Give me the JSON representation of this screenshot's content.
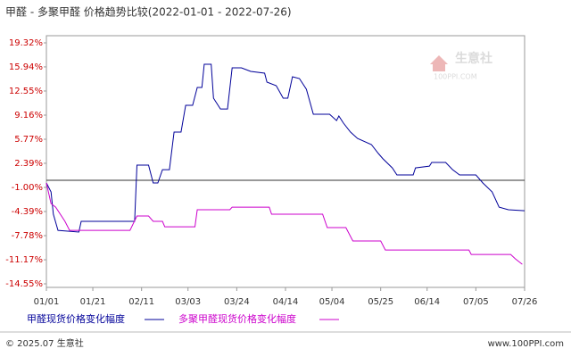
{
  "chart_data": {
    "type": "line",
    "title": "甲醛 - 多聚甲醛 价格趋势比较(2022-01-01 - 2022-07-26)",
    "xlim": [
      "01/01",
      "07/26"
    ],
    "xticks": [
      "01/01",
      "01/21",
      "02/11",
      "03/03",
      "03/24",
      "04/14",
      "05/04",
      "05/25",
      "06/14",
      "07/05",
      "07/26"
    ],
    "ylim": [
      -14.55,
      19.32
    ],
    "yticks": [
      {
        "value": 19.32,
        "label": "19.32%"
      },
      {
        "value": 15.94,
        "label": "15.94%"
      },
      {
        "value": 12.55,
        "label": "12.55%"
      },
      {
        "value": 9.16,
        "label": "9.16%"
      },
      {
        "value": 5.77,
        "label": "5.77%"
      },
      {
        "value": 2.39,
        "label": "2.39%"
      },
      {
        "value": -1.0,
        "label": "-1.00%"
      },
      {
        "value": -4.39,
        "label": "-4.39%"
      },
      {
        "value": -7.78,
        "label": "-7.78%"
      },
      {
        "value": -11.17,
        "label": "-11.17%"
      },
      {
        "value": -14.55,
        "label": "-14.55%"
      }
    ],
    "series": [
      {
        "name": "甲醛现货价格变化幅度",
        "color": "#000099",
        "x": [
          "01/01",
          "01/03",
          "01/04",
          "01/06",
          "01/15",
          "01/16",
          "02/08",
          "02/09",
          "02/14",
          "02/16",
          "02/18",
          "02/20",
          "02/23",
          "02/25",
          "02/28",
          "03/02",
          "03/05",
          "03/07",
          "03/09",
          "03/10",
          "03/13",
          "03/14",
          "03/17",
          "03/20",
          "03/22",
          "03/26",
          "03/30",
          "04/05",
          "04/06",
          "04/10",
          "04/13",
          "04/15",
          "04/17",
          "04/20",
          "04/23",
          "04/26",
          "05/03",
          "05/06",
          "05/07",
          "05/09",
          "05/12",
          "05/15",
          "05/21",
          "05/24",
          "05/26",
          "05/30",
          "06/01",
          "06/08",
          "06/09",
          "06/15",
          "06/16",
          "06/22",
          "06/25",
          "06/28",
          "07/05",
          "07/08",
          "07/12",
          "07/15",
          "07/19",
          "07/26"
        ],
        "values": [
          -0.38,
          -1.63,
          -4.77,
          -7.03,
          -7.28,
          -5.77,
          -5.77,
          2.13,
          2.13,
          -0.38,
          -0.38,
          1.5,
          1.5,
          6.77,
          6.77,
          10.54,
          10.54,
          13.05,
          13.05,
          16.31,
          16.31,
          11.54,
          10.03,
          10.03,
          15.81,
          15.81,
          15.31,
          15.05,
          13.8,
          13.3,
          11.54,
          11.54,
          14.55,
          14.3,
          12.8,
          9.28,
          9.28,
          8.4,
          9.03,
          8.03,
          6.77,
          5.89,
          5.02,
          3.76,
          3.01,
          1.75,
          0.75,
          0.75,
          1.75,
          2.0,
          2.51,
          2.51,
          1.5,
          0.75,
          0.75,
          -0.38,
          -1.63,
          -3.77,
          -4.14,
          -4.27
        ]
      },
      {
        "name": "多聚甲醛现货价格变化幅度",
        "color": "#cc00cc",
        "x": [
          "01/01",
          "01/03",
          "01/05",
          "01/09",
          "01/11",
          "02/06",
          "02/09",
          "02/14",
          "02/16",
          "02/20",
          "02/21",
          "03/06",
          "03/07",
          "03/21",
          "03/22",
          "04/07",
          "04/08",
          "04/30",
          "05/02",
          "05/10",
          "05/11",
          "05/13",
          "05/25",
          "05/27",
          "07/02",
          "07/03",
          "07/20",
          "07/22",
          "07/25"
        ],
        "values": [
          -0.38,
          -3.27,
          -3.77,
          -5.77,
          -7.03,
          -7.03,
          -5.02,
          -5.02,
          -5.77,
          -5.77,
          -6.53,
          -6.53,
          -4.14,
          -4.14,
          -3.77,
          -3.77,
          -4.77,
          -4.77,
          -6.65,
          -6.65,
          -7.28,
          -8.53,
          -8.53,
          -9.79,
          -9.79,
          -10.42,
          -10.42,
          -11.04,
          -11.8
        ]
      }
    ],
    "watermark": {
      "name": "生意社",
      "site": "100PPI.COM"
    },
    "footer": {
      "left": "© 2025.07 生意社",
      "right": "www.100PPI.com"
    }
  }
}
